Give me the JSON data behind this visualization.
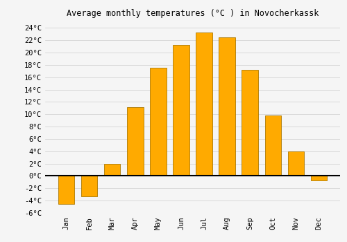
{
  "title": "Average monthly temperatures (°C ) in Novocherkassk",
  "months": [
    "Jan",
    "Feb",
    "Mar",
    "Apr",
    "May",
    "Jun",
    "Jul",
    "Aug",
    "Sep",
    "Oct",
    "Nov",
    "Dec"
  ],
  "values": [
    -4.5,
    -3.3,
    2.0,
    11.2,
    17.5,
    21.2,
    23.3,
    22.5,
    17.2,
    9.8,
    4.0,
    -0.7
  ],
  "bar_color": "#FFAA00",
  "bar_edge_color": "#AA7700",
  "background_color": "#F5F5F5",
  "grid_color": "#CCCCCC",
  "ylim": [
    -6,
    25
  ],
  "yticks": [
    -6,
    -4,
    -2,
    0,
    2,
    4,
    6,
    8,
    10,
    12,
    14,
    16,
    18,
    20,
    22,
    24
  ],
  "title_fontsize": 8.5,
  "tick_fontsize": 7.5,
  "title_font": "monospace"
}
